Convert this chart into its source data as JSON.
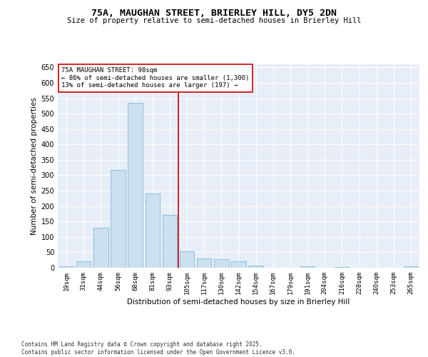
{
  "title_line1": "75A, MAUGHAN STREET, BRIERLEY HILL, DY5 2DN",
  "title_line2": "Size of property relative to semi-detached houses in Brierley Hill",
  "xlabel": "Distribution of semi-detached houses by size in Brierley Hill",
  "ylabel": "Number of semi-detached properties",
  "categories": [
    "19sqm",
    "31sqm",
    "44sqm",
    "56sqm",
    "68sqm",
    "81sqm",
    "93sqm",
    "105sqm",
    "117sqm",
    "130sqm",
    "142sqm",
    "154sqm",
    "167sqm",
    "179sqm",
    "191sqm",
    "204sqm",
    "216sqm",
    "228sqm",
    "240sqm",
    "253sqm",
    "265sqm"
  ],
  "values": [
    5,
    22,
    130,
    318,
    535,
    242,
    172,
    53,
    30,
    28,
    20,
    7,
    0,
    0,
    5,
    0,
    3,
    0,
    0,
    0,
    5
  ],
  "bar_color": "#cce0f0",
  "bar_edge_color": "#6baed6",
  "vline_color": "#cc0000",
  "annotation_title": "75A MAUGHAN STREET: 98sqm",
  "annotation_line2": "← 86% of semi-detached houses are smaller (1,300)",
  "annotation_line3": "13% of semi-detached houses are larger (197) →",
  "annotation_box_color": "#cc0000",
  "ylim": [
    0,
    660
  ],
  "yticks": [
    0,
    50,
    100,
    150,
    200,
    250,
    300,
    350,
    400,
    450,
    500,
    550,
    600,
    650
  ],
  "bg_color": "#e8eef8",
  "grid_color": "#ffffff",
  "footer_line1": "Contains HM Land Registry data © Crown copyright and database right 2025.",
  "footer_line2": "Contains public sector information licensed under the Open Government Licence v3.0."
}
